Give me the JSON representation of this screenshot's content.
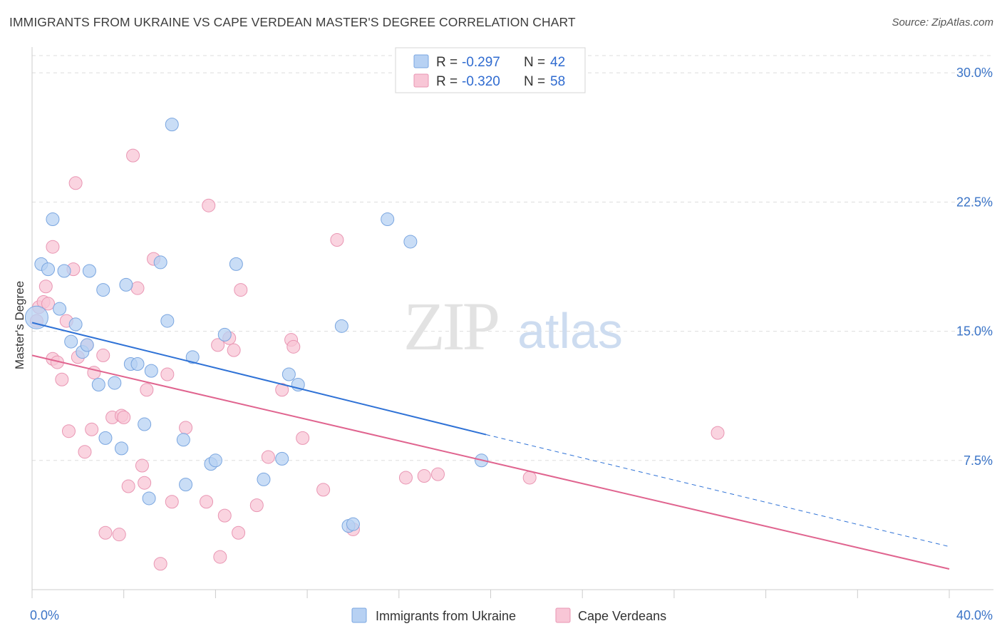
{
  "title": "IMMIGRANTS FROM UKRAINE VS CAPE VERDEAN MASTER'S DEGREE CORRELATION CHART",
  "source": "Source: ZipAtlas.com",
  "watermark": {
    "zip": "ZIP",
    "atlas": "atlas"
  },
  "colors": {
    "blue_fill": "#b7d1f3",
    "blue_stroke": "#7aa6e0",
    "blue_line": "#2f72d6",
    "pink_fill": "#f8c6d6",
    "pink_stroke": "#e996b3",
    "pink_line": "#e0648f",
    "grid": "#dddddd",
    "axis": "#cccccc"
  },
  "legend": {
    "rows": [
      {
        "r_label": "R =",
        "r_value": "-0.297",
        "n_label": "N =",
        "n_value": "42",
        "color": "blue"
      },
      {
        "r_label": "R =",
        "r_value": "-0.320",
        "n_label": "N =",
        "n_value": "58",
        "color": "pink"
      }
    ]
  },
  "bottom_legend": [
    "Immigrants from Ukraine",
    "Cape Verdeans"
  ],
  "chart_data": {
    "type": "scatter",
    "ylabel": "Master's Degree",
    "xlim": [
      0,
      40
    ],
    "ylim": [
      0,
      31
    ],
    "x_tick_labels": [
      "0.0%",
      "40.0%"
    ],
    "y_ticks": [
      7.5,
      15.0,
      22.5,
      30.0
    ],
    "y_tick_labels": [
      "7.5%",
      "15.0%",
      "22.5%",
      "30.0%"
    ],
    "grid": true,
    "series": [
      {
        "name": "Immigrants from Ukraine",
        "color": "blue",
        "points": [
          [
            0.2,
            15.8
          ],
          [
            0.4,
            18.9
          ],
          [
            0.7,
            18.6
          ],
          [
            0.9,
            21.5
          ],
          [
            1.2,
            16.3
          ],
          [
            1.4,
            18.5
          ],
          [
            1.7,
            14.4
          ],
          [
            1.9,
            15.4
          ],
          [
            2.2,
            13.8
          ],
          [
            2.4,
            14.2
          ],
          [
            2.5,
            18.5
          ],
          [
            2.9,
            11.9
          ],
          [
            3.1,
            17.4
          ],
          [
            3.2,
            8.8
          ],
          [
            3.6,
            12.0
          ],
          [
            3.9,
            8.2
          ],
          [
            4.1,
            17.7
          ],
          [
            4.3,
            13.1
          ],
          [
            4.6,
            13.1
          ],
          [
            4.9,
            9.6
          ],
          [
            5.2,
            12.7
          ],
          [
            5.6,
            19.0
          ],
          [
            5.9,
            15.6
          ],
          [
            6.1,
            27.0
          ],
          [
            6.6,
            8.7
          ],
          [
            6.7,
            6.1
          ],
          [
            7.0,
            13.5
          ],
          [
            7.8,
            7.3
          ],
          [
            8.0,
            7.5
          ],
          [
            8.4,
            14.8
          ],
          [
            8.9,
            18.9
          ],
          [
            10.1,
            6.4
          ],
          [
            10.9,
            7.6
          ],
          [
            11.2,
            12.5
          ],
          [
            11.6,
            11.9
          ],
          [
            13.5,
            15.3
          ],
          [
            13.8,
            3.7
          ],
          [
            14.0,
            3.8
          ],
          [
            15.5,
            21.5
          ],
          [
            16.5,
            20.2
          ],
          [
            19.6,
            7.5
          ],
          [
            5.1,
            5.3
          ]
        ]
      },
      {
        "name": "Cape Verdeans",
        "color": "pink",
        "points": [
          [
            0.2,
            15.6
          ],
          [
            0.3,
            16.4
          ],
          [
            0.5,
            16.7
          ],
          [
            0.6,
            17.6
          ],
          [
            0.7,
            16.6
          ],
          [
            0.9,
            13.4
          ],
          [
            0.9,
            19.9
          ],
          [
            1.1,
            13.2
          ],
          [
            1.3,
            12.2
          ],
          [
            1.5,
            15.6
          ],
          [
            1.6,
            9.2
          ],
          [
            1.8,
            18.6
          ],
          [
            1.9,
            23.6
          ],
          [
            2.0,
            13.5
          ],
          [
            2.3,
            8.0
          ],
          [
            2.4,
            14.2
          ],
          [
            2.6,
            9.3
          ],
          [
            2.7,
            12.6
          ],
          [
            3.1,
            13.6
          ],
          [
            3.2,
            3.3
          ],
          [
            3.5,
            10.0
          ],
          [
            3.8,
            3.2
          ],
          [
            3.9,
            10.1
          ],
          [
            4.0,
            10.0
          ],
          [
            4.2,
            6.0
          ],
          [
            4.4,
            25.2
          ],
          [
            4.6,
            17.5
          ],
          [
            4.8,
            7.2
          ],
          [
            4.9,
            6.2
          ],
          [
            5.0,
            11.6
          ],
          [
            5.3,
            19.2
          ],
          [
            5.6,
            1.5
          ],
          [
            5.9,
            12.5
          ],
          [
            6.1,
            5.1
          ],
          [
            6.7,
            9.4
          ],
          [
            7.6,
            5.1
          ],
          [
            7.7,
            22.3
          ],
          [
            8.1,
            14.2
          ],
          [
            8.2,
            1.9
          ],
          [
            8.4,
            4.3
          ],
          [
            8.6,
            14.6
          ],
          [
            8.8,
            13.9
          ],
          [
            9.0,
            3.3
          ],
          [
            9.1,
            17.4
          ],
          [
            9.8,
            4.9
          ],
          [
            10.3,
            7.7
          ],
          [
            10.9,
            11.6
          ],
          [
            11.3,
            14.5
          ],
          [
            11.4,
            14.1
          ],
          [
            11.8,
            8.8
          ],
          [
            12.7,
            5.8
          ],
          [
            13.3,
            20.3
          ],
          [
            14.0,
            3.5
          ],
          [
            16.3,
            6.5
          ],
          [
            17.1,
            6.6
          ],
          [
            17.7,
            6.7
          ],
          [
            21.7,
            6.5
          ],
          [
            29.9,
            9.1
          ]
        ]
      }
    ],
    "trend_lines": [
      {
        "series": "Immigrants from Ukraine",
        "x_start": 0,
        "y_start": 15.5,
        "x_solid_end": 19.8,
        "y_solid_end": 9.0,
        "x_end": 40,
        "y_end": 2.5
      },
      {
        "series": "Cape Verdeans",
        "x_start": 0,
        "y_start": 13.6,
        "x_end": 40,
        "y_end": 1.2
      }
    ]
  }
}
